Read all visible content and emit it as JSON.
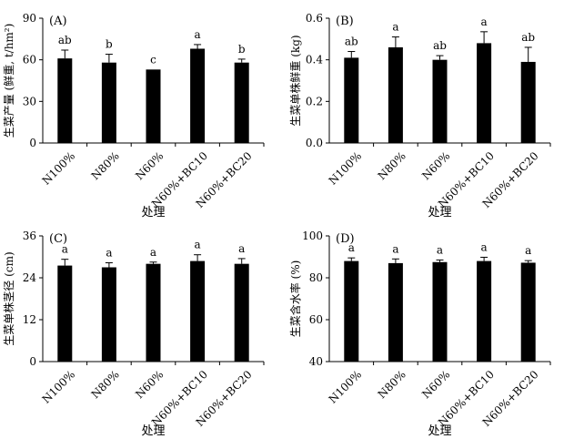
{
  "chart_data": [
    {
      "type": "bar",
      "panel": "(A)",
      "ylabel": "生菜产量 (鲜重, t/hm²)",
      "xlabel": "处理",
      "categories": [
        "N100%",
        "N80%",
        "N60%",
        "N60%+BC10",
        "N60%+BC20"
      ],
      "values": [
        61,
        58,
        53,
        68,
        58
      ],
      "errors": [
        6,
        6,
        0,
        3,
        2.5
      ],
      "significance": [
        "ab",
        "b",
        "c",
        "a",
        "b"
      ],
      "ylim": [
        0,
        90
      ],
      "yticks": [
        0,
        30,
        60,
        90
      ]
    },
    {
      "type": "bar",
      "panel": "(B)",
      "ylabel": "生菜单株鲜重 (kg)",
      "xlabel": "处理",
      "categories": [
        "N100%",
        "N80%",
        "N60%",
        "N60%+BC10",
        "N60%+BC20"
      ],
      "values": [
        0.41,
        0.46,
        0.4,
        0.48,
        0.39
      ],
      "errors": [
        0.03,
        0.05,
        0.02,
        0.055,
        0.07
      ],
      "significance": [
        "ab",
        "a",
        "ab",
        "a",
        "ab"
      ],
      "ylim": [
        0,
        0.6
      ],
      "yticks": [
        0.0,
        0.2,
        0.4,
        0.6
      ],
      "ytick_decimals": 1
    },
    {
      "type": "bar",
      "panel": "(C)",
      "ylabel": "生菜单株茎径 (cm)",
      "xlabel": "处理",
      "categories": [
        "N100%",
        "N80%",
        "N60%",
        "N60%+BC10",
        "N60%+BC20"
      ],
      "values": [
        27.5,
        27,
        28,
        28.8,
        28
      ],
      "errors": [
        1.8,
        1.3,
        0.5,
        1.8,
        1.5
      ],
      "significance": [
        "a",
        "a",
        "a",
        "a",
        "a"
      ],
      "ylim": [
        0,
        36
      ],
      "yticks": [
        0,
        12,
        24,
        36
      ]
    },
    {
      "type": "bar",
      "panel": "(D)",
      "ylabel": "生菜含水率 (%)",
      "xlabel": "处理",
      "categories": [
        "N100%",
        "N80%",
        "N60%",
        "N60%+BC10",
        "N60%+BC20"
      ],
      "values": [
        88,
        87,
        87.5,
        88,
        87.2
      ],
      "errors": [
        1.5,
        2,
        1,
        1.8,
        1
      ],
      "significance": [
        "a",
        "a",
        "a",
        "a",
        "a"
      ],
      "ylim": [
        40,
        100
      ],
      "yticks": [
        40,
        60,
        80,
        100
      ]
    }
  ]
}
